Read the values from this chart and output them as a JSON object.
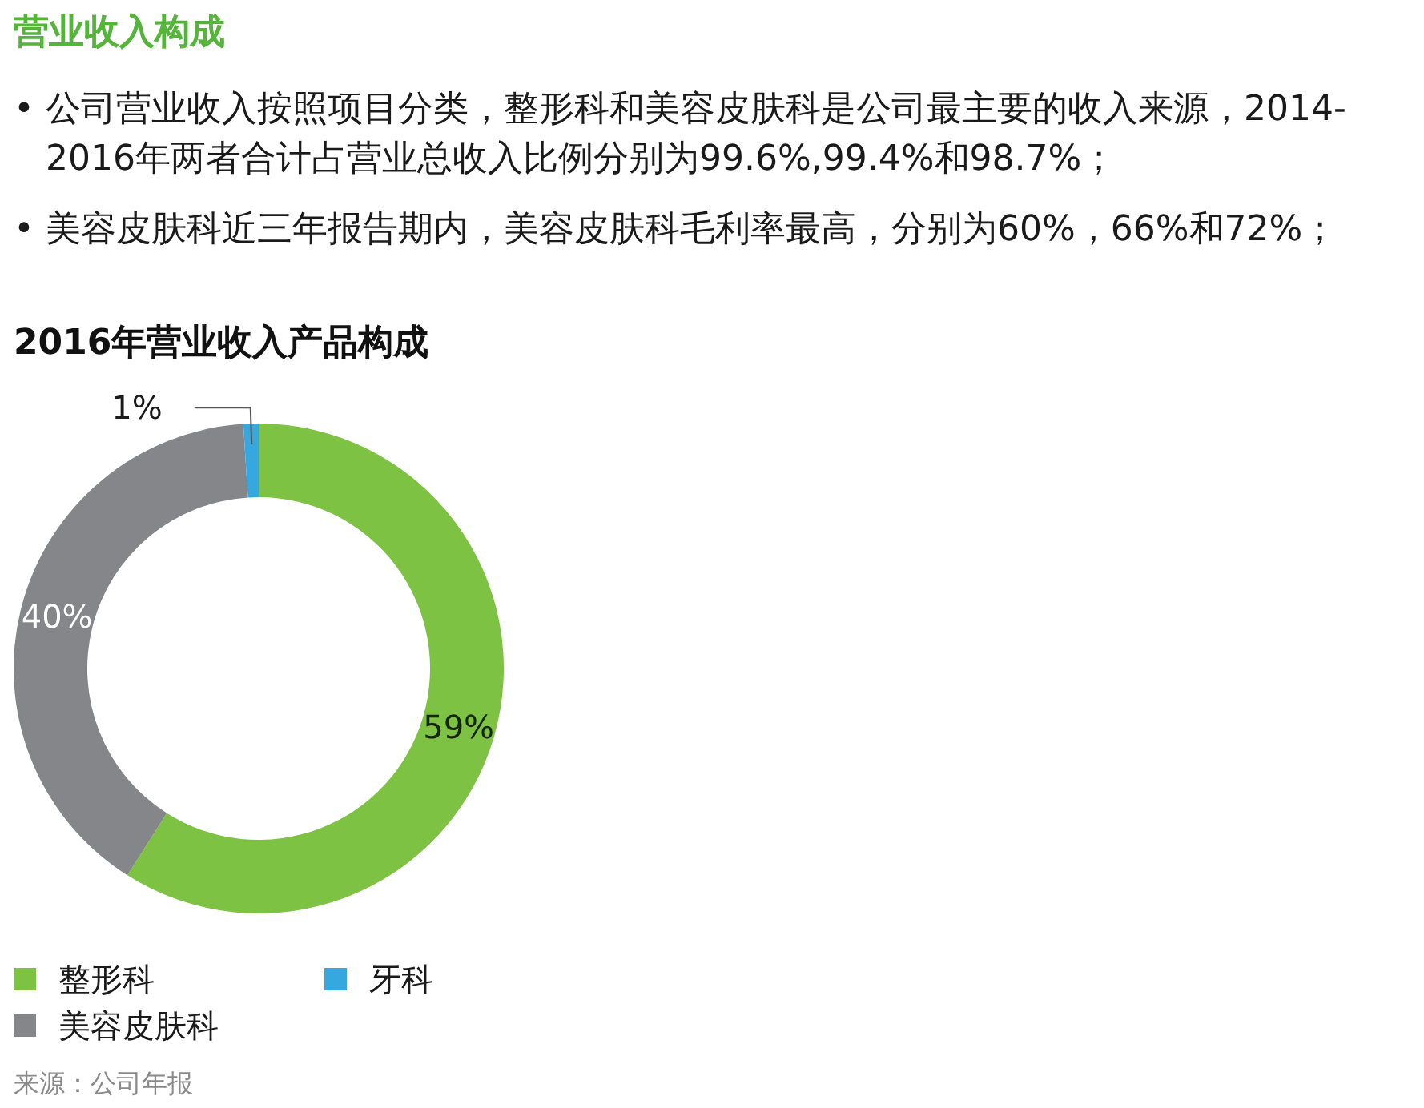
{
  "chart_data": {
    "type": "donut",
    "title": "营业收入构成",
    "subtitle": "2016年营业收入产品构成",
    "categories": [
      "整形科",
      "美容皮肤科",
      "牙科"
    ],
    "values": [
      59,
      40,
      1
    ],
    "colors": [
      "#7dc243",
      "#85868a",
      "#35a8e0"
    ],
    "value_labels": [
      "59%",
      "40%",
      "1%"
    ],
    "legend": "bottom",
    "annotations": [
      "• 公司营业收入按照项目分类，整形科和美容皮肤科是公司最主要的收入来源，2014-2016年两者合计占营业总收入比例分别为99.6%,99.4%和98.7%；",
      "• 美容皮肤科近三年报告期内，美容皮肤科毛利率最高，分别为60%，66%和72%；",
      "来源：公司年报"
    ]
  }
}
